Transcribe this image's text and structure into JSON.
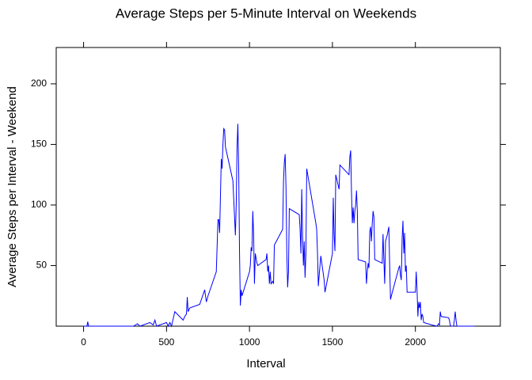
{
  "chart_data": {
    "type": "line",
    "title": "Average Steps per 5-Minute Interval on Weekends",
    "x_label": "Interval",
    "y_label": "Average Steps per Interval - Weekend",
    "color": "#0000ff",
    "x": [
      0,
      20,
      25,
      30,
      100,
      200,
      300,
      325,
      340,
      400,
      420,
      430,
      440,
      500,
      510,
      520,
      530,
      550,
      600,
      610,
      620,
      625,
      630,
      640,
      700,
      730,
      740,
      750,
      800,
      810,
      815,
      820,
      830,
      835,
      840,
      845,
      850,
      855,
      900,
      910,
      915,
      920,
      925,
      930,
      935,
      940,
      945,
      950,
      955,
      1000,
      1005,
      1010,
      1015,
      1020,
      1025,
      1030,
      1035,
      1045,
      1050,
      1100,
      1105,
      1110,
      1115,
      1120,
      1125,
      1130,
      1140,
      1145,
      1150,
      1200,
      1205,
      1210,
      1215,
      1220,
      1225,
      1230,
      1235,
      1240,
      1300,
      1305,
      1310,
      1315,
      1320,
      1325,
      1330,
      1335,
      1340,
      1345,
      1400,
      1405,
      1410,
      1415,
      1420,
      1430,
      1450,
      1455,
      1500,
      1505,
      1510,
      1515,
      1520,
      1540,
      1545,
      1600,
      1605,
      1610,
      1615,
      1620,
      1625,
      1630,
      1635,
      1640,
      1645,
      1650,
      1655,
      1700,
      1705,
      1710,
      1715,
      1720,
      1725,
      1730,
      1735,
      1740,
      1745,
      1750,
      1755,
      1800,
      1805,
      1810,
      1815,
      1820,
      1830,
      1840,
      1845,
      1850,
      1855,
      1900,
      1905,
      1910,
      1915,
      1920,
      1925,
      1930,
      1935,
      1940,
      1945,
      1950,
      2000,
      2005,
      2010,
      2015,
      2020,
      2025,
      2030,
      2035,
      2040,
      2045,
      2050,
      2100,
      2130,
      2135,
      2140,
      2145,
      2150,
      2155,
      2200,
      2205,
      2210,
      2215,
      2230,
      2235,
      2240,
      2245,
      2250,
      2300,
      2355
    ],
    "values": [
      0,
      0,
      3.7,
      0,
      0,
      0,
      0,
      2,
      0,
      3,
      1,
      5,
      0,
      3,
      0,
      3,
      0,
      12,
      5,
      8,
      10,
      24,
      12,
      15,
      18,
      30,
      20,
      25,
      45,
      88,
      88,
      77,
      138,
      130,
      150,
      163,
      162,
      148,
      120,
      90,
      75,
      100,
      148,
      167,
      130,
      60,
      17,
      30,
      25,
      45,
      50,
      65,
      62,
      95,
      75,
      35,
      60,
      52,
      50,
      55,
      60,
      45,
      50,
      35,
      45,
      35,
      37,
      35,
      67,
      80,
      120,
      135,
      142,
      115,
      60,
      32,
      45,
      97,
      92,
      80,
      60,
      113,
      75,
      50,
      70,
      40,
      60,
      130,
      85,
      80,
      60,
      33,
      42,
      58,
      38,
      28,
      60,
      106,
      75,
      62,
      125,
      113,
      133,
      125,
      140,
      145,
      110,
      85,
      98,
      85,
      95,
      100,
      112,
      95,
      55,
      53,
      35,
      45,
      52,
      48,
      78,
      82,
      70,
      85,
      95,
      90,
      55,
      52,
      76,
      55,
      35,
      70,
      75,
      82,
      50,
      22,
      25,
      48,
      50,
      42,
      38,
      72,
      87,
      60,
      77,
      45,
      50,
      28,
      28,
      45,
      30,
      8,
      20,
      15,
      20,
      5,
      10,
      8,
      3,
      1,
      0,
      1,
      2,
      1,
      12,
      8,
      7,
      5,
      1,
      0,
      0,
      5,
      12,
      5,
      0,
      0,
      0
    ],
    "xlim": [
      -165,
      2512
    ],
    "ylim": [
      0,
      230
    ],
    "xticks": [
      0,
      500,
      1000,
      1500,
      2000
    ],
    "yticks": [
      50,
      100,
      150,
      200
    ]
  }
}
